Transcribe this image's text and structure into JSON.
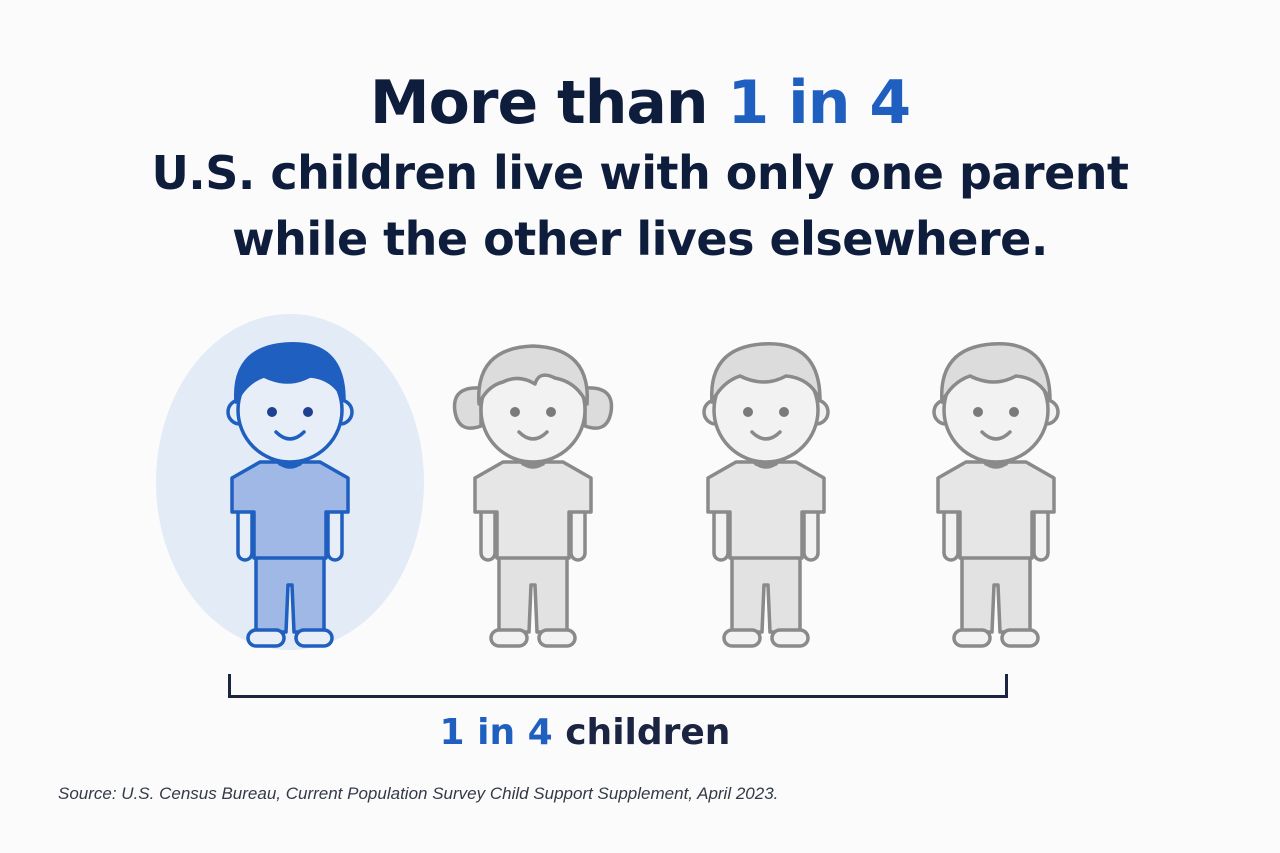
{
  "headline": {
    "line1_prefix": "More than ",
    "line1_accent": "1 in 4",
    "line2": "U.S. children live with only one parent",
    "line3": "while the other lives elsewhere."
  },
  "figures": [
    {
      "kind": "boy",
      "highlighted": true,
      "icon": "child-boy-icon"
    },
    {
      "kind": "girl",
      "highlighted": false,
      "icon": "child-girl-icon"
    },
    {
      "kind": "boy",
      "highlighted": false,
      "icon": "child-boy-icon"
    },
    {
      "kind": "boy",
      "highlighted": false,
      "icon": "child-boy-icon"
    }
  ],
  "bracket_label": {
    "accent": "1 in 4",
    "rest": " children"
  },
  "source": "Source: U.S. Census Bureau, Current Population Survey Child Support Supplement, April 2023.",
  "colors": {
    "navy": "#0f1d3d",
    "accent_blue": "#1f5fbf",
    "highlight_bg": "#e3ebf7",
    "highlight_fill": "#9fb8e6",
    "gray_fill": "#e6e6e6",
    "gray_stroke": "#8a8a8a"
  }
}
